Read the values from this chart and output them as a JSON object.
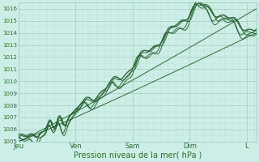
{
  "xlabel": "Pression niveau de la mer( hPa )",
  "ylim": [
    1005,
    1016.5
  ],
  "yticks": [
    1005,
    1006,
    1007,
    1008,
    1009,
    1010,
    1011,
    1012,
    1013,
    1014,
    1015,
    1016
  ],
  "xtick_labels": [
    "Jeu",
    "Ven",
    "Sam",
    "Dim",
    "L"
  ],
  "xtick_positions": [
    0,
    24,
    48,
    72,
    96
  ],
  "xlim": [
    0,
    100
  ],
  "bg_color": "#cdeee6",
  "grid_major_color": "#a0ccbc",
  "grid_minor_color": "#b8ddd4",
  "line_color": "#1e5c28",
  "font_color": "#2d6e2d",
  "xlabel_fontsize": 7,
  "ytick_fontsize": 5,
  "xtick_fontsize": 6
}
